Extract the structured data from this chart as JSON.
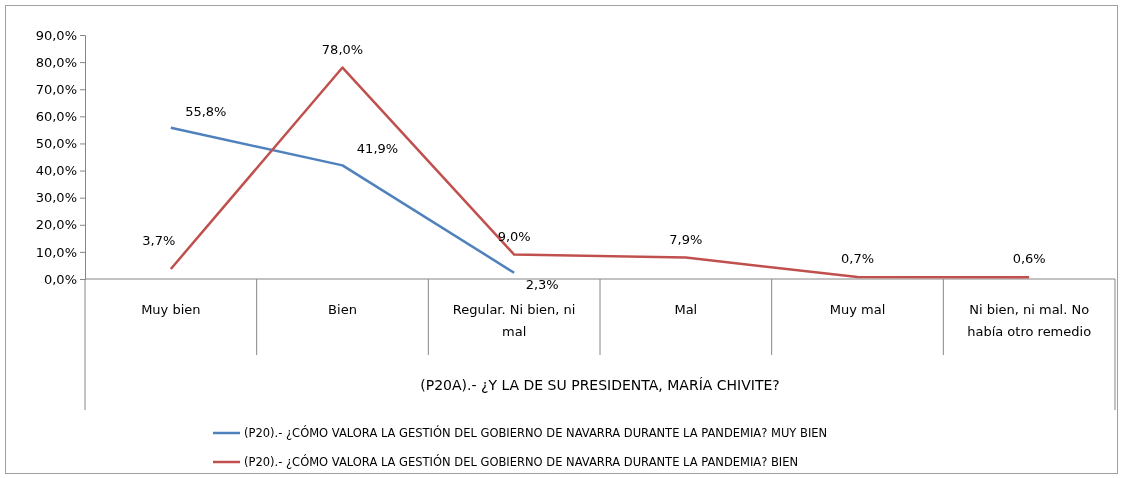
{
  "chart_data": {
    "type": "line",
    "xlabel": "(P20A).- ¿Y LA DE SU PRESIDENTA, MARÍA CHIVITE?",
    "categories": [
      "Muy bien",
      "Bien",
      "Regular. Ni bien, ni mal",
      "Mal",
      "Muy mal",
      "Ni bien, ni mal. No había otro remedio"
    ],
    "series": [
      {
        "name": "(P20).- ¿CÓMO VALORA LA GESTIÓN DEL GOBIERNO DE NAVARRA DURANTE LA PANDEMIA? MUY BIEN",
        "color": "#4f81bd",
        "values": [
          55.8,
          41.9,
          2.3,
          null,
          null,
          null
        ],
        "value_labels": [
          "55,8%",
          "41,9%",
          "2,3%",
          null,
          null,
          null
        ]
      },
      {
        "name": "(P20).- ¿CÓMO VALORA LA GESTIÓN DEL GOBIERNO DE NAVARRA DURANTE LA PANDEMIA? BIEN",
        "color": "#c0504d",
        "values": [
          3.7,
          78.0,
          9.0,
          7.9,
          0.7,
          0.6
        ],
        "value_labels": [
          "3,7%",
          "78,0%",
          "9,0%",
          "7,9%",
          "0,7%",
          "0,6%"
        ]
      }
    ],
    "ylim": [
      0,
      90
    ],
    "yticks": [
      {
        "value": 0,
        "label": "0,0%"
      },
      {
        "value": 10,
        "label": "10,0%"
      },
      {
        "value": 20,
        "label": "20,0%"
      },
      {
        "value": 30,
        "label": "30,0%"
      },
      {
        "value": 40,
        "label": "40,0%"
      },
      {
        "value": 50,
        "label": "50,0%"
      },
      {
        "value": 60,
        "label": "60,0%"
      },
      {
        "value": 70,
        "label": "70,0%"
      },
      {
        "value": 80,
        "label": "80,0%"
      },
      {
        "value": 90,
        "label": "90,0%"
      }
    ],
    "legend": "bottom",
    "marker": "none",
    "line_style": "solid"
  }
}
